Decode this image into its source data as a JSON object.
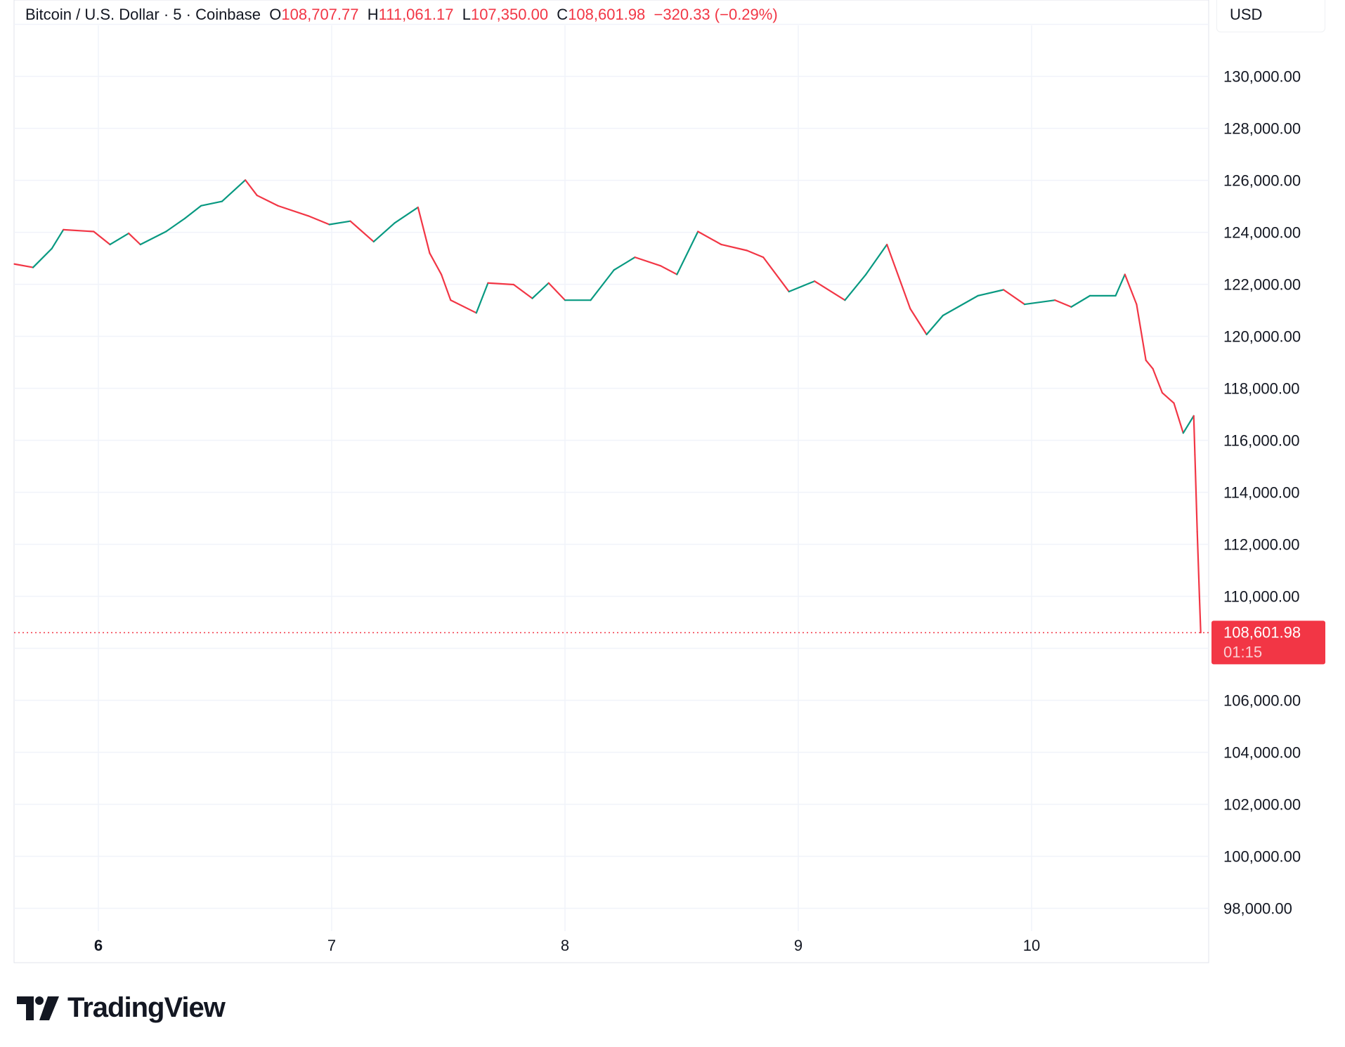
{
  "header": {
    "symbol": "Bitcoin / U.S. Dollar · 5 · Coinbase",
    "o_label": "O",
    "o": "108,707.77",
    "h_label": "H",
    "h": "111,061.17",
    "l_label": "L",
    "l": "107,350.00",
    "c_label": "C",
    "c": "108,601.98",
    "change": "−320.33 (−0.29%)"
  },
  "currency": "USD",
  "brand": "TradingView",
  "colors": {
    "up": "#089981",
    "down": "#f23645",
    "grid": "#f0f3fa",
    "text": "#131722"
  },
  "chart_data": {
    "type": "candlestick",
    "interval": "5",
    "grid": true,
    "ylim": [
      97000,
      132000
    ],
    "xlim": [
      5.64,
      10.75
    ],
    "y_ticks": [
      130000,
      128000,
      126000,
      124000,
      122000,
      120000,
      118000,
      116000,
      114000,
      112000,
      110000,
      108000,
      106000,
      104000,
      102000,
      100000,
      98000
    ],
    "y_tick_labels": [
      "130,000.00",
      "128,000.00",
      "126,000.00",
      "124,000.00",
      "122,000.00",
      "120,000.00",
      "118,000.00",
      "116,000.00",
      "114,000.00",
      "112,000.00",
      "110,000.00",
      "",
      "106,000.00",
      "104,000.00",
      "102,000.00",
      "100,000.00",
      "98,000.00"
    ],
    "x_ticks": [
      6,
      7,
      8,
      9,
      10
    ],
    "x_tick_labels": [
      "6",
      "7",
      "8",
      "9",
      "10"
    ],
    "last_price": 108601.98,
    "last_price_label": "108,601.98",
    "countdown": "01:15",
    "points": [
      [
        5.64,
        122780
      ],
      [
        5.72,
        122650
      ],
      [
        5.8,
        123370
      ],
      [
        5.85,
        124100
      ],
      [
        5.98,
        124030
      ],
      [
        6.05,
        123530
      ],
      [
        6.13,
        123960
      ],
      [
        6.18,
        123530
      ],
      [
        6.29,
        124030
      ],
      [
        6.37,
        124530
      ],
      [
        6.44,
        125020
      ],
      [
        6.53,
        125190
      ],
      [
        6.63,
        126010
      ],
      [
        6.68,
        125420
      ],
      [
        6.77,
        125020
      ],
      [
        6.9,
        124630
      ],
      [
        6.99,
        124300
      ],
      [
        7.08,
        124430
      ],
      [
        7.18,
        123640
      ],
      [
        7.27,
        124360
      ],
      [
        7.37,
        124960
      ],
      [
        7.42,
        123200
      ],
      [
        7.47,
        122380
      ],
      [
        7.51,
        121390
      ],
      [
        7.62,
        120900
      ],
      [
        7.67,
        122050
      ],
      [
        7.78,
        121990
      ],
      [
        7.86,
        121460
      ],
      [
        7.93,
        122050
      ],
      [
        8.0,
        121390
      ],
      [
        8.11,
        121390
      ],
      [
        8.21,
        122550
      ],
      [
        8.3,
        123040
      ],
      [
        8.41,
        122710
      ],
      [
        8.48,
        122380
      ],
      [
        8.57,
        124030
      ],
      [
        8.67,
        123530
      ],
      [
        8.78,
        123300
      ],
      [
        8.85,
        123040
      ],
      [
        8.96,
        121720
      ],
      [
        9.07,
        122120
      ],
      [
        9.2,
        121390
      ],
      [
        9.29,
        122380
      ],
      [
        9.38,
        123530
      ],
      [
        9.44,
        122050
      ],
      [
        9.48,
        121060
      ],
      [
        9.55,
        120070
      ],
      [
        9.62,
        120800
      ],
      [
        9.77,
        121560
      ],
      [
        9.88,
        121790
      ],
      [
        9.97,
        121230
      ],
      [
        10.1,
        121390
      ],
      [
        10.17,
        121130
      ],
      [
        10.25,
        121560
      ],
      [
        10.36,
        121560
      ],
      [
        10.4,
        122380
      ],
      [
        10.45,
        121230
      ],
      [
        10.49,
        119080
      ],
      [
        10.52,
        118750
      ],
      [
        10.56,
        117830
      ],
      [
        10.61,
        117430
      ],
      [
        10.65,
        116280
      ],
      [
        10.695,
        116940
      ],
      [
        10.7,
        115450
      ],
      [
        10.71,
        112480
      ],
      [
        10.72,
        109840
      ],
      [
        10.725,
        108602
      ]
    ]
  }
}
